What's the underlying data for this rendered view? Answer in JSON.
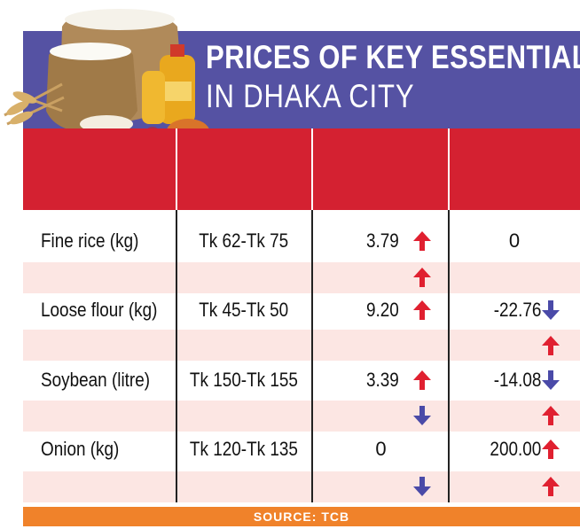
{
  "title_line1": "PRICES OF KEY ESSENTIALS",
  "title_line2": "IN DHAKA CITY",
  "source": "SOURCE: TCB",
  "colors": {
    "banner": "#5552a3",
    "header_red": "#d42131",
    "row_pink": "#fce6e3",
    "source_orange": "#f0822a",
    "arrow_up": "#e02030",
    "arrow_down": "#4a4aa8"
  },
  "chart_data": {
    "type": "table",
    "rows": [
      {
        "item": "Fine rice (kg)",
        "price": "Tk 62-Tk 75",
        "change_a": "3.79",
        "change_a_dir": "up",
        "change_b": "0",
        "change_b_dir": "none",
        "sub_a_dir": "up",
        "sub_b_dir": "none"
      },
      {
        "item": "Loose flour (kg)",
        "price": "Tk 45-Tk 50",
        "change_a": "9.20",
        "change_a_dir": "up",
        "change_b": "-22.76",
        "change_b_dir": "down",
        "sub_a_dir": "none",
        "sub_b_dir": "up"
      },
      {
        "item": "Soybean (litre)",
        "price": "Tk 150-Tk 155",
        "change_a": "3.39",
        "change_a_dir": "up",
        "change_b": "-14.08",
        "change_b_dir": "down",
        "sub_a_dir": "down",
        "sub_b_dir": "up"
      },
      {
        "item": "Onion (kg)",
        "price": "Tk 120-Tk 135",
        "change_a": "0",
        "change_a_dir": "none",
        "change_b": "200.00",
        "change_b_dir": "up",
        "sub_a_dir": "down",
        "sub_b_dir": "up"
      }
    ]
  }
}
